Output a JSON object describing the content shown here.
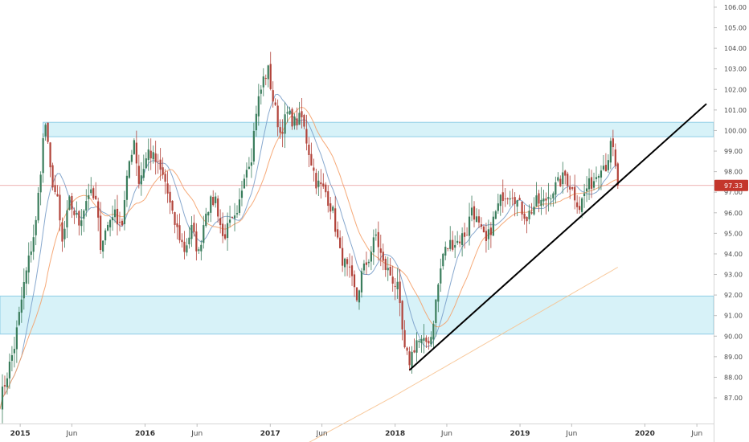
{
  "chart_data": {
    "type": "candlestick",
    "x_range": [
      "2014-11-03",
      "2020-07-20"
    ],
    "y_range": [
      85.75,
      106.35
    ],
    "y_ticks": [
      "87.00",
      "88.00",
      "89.00",
      "90.00",
      "91.00",
      "92.00",
      "93.00",
      "94.00",
      "95.00",
      "96.00",
      "97.00",
      "98.00",
      "99.00",
      "100.00",
      "101.00",
      "102.00",
      "103.00",
      "104.00",
      "105.00",
      "106.00"
    ],
    "x_ticks": [
      {
        "date": "2015-01-01",
        "label": "2015",
        "year": true
      },
      {
        "date": "2015-06-01",
        "label": "Jun",
        "year": false
      },
      {
        "date": "2016-01-01",
        "label": "2016",
        "year": true
      },
      {
        "date": "2016-06-01",
        "label": "Jun",
        "year": false
      },
      {
        "date": "2017-01-01",
        "label": "2017",
        "year": true
      },
      {
        "date": "2017-06-01",
        "label": "Jun",
        "year": false
      },
      {
        "date": "2018-01-01",
        "label": "2018",
        "year": true
      },
      {
        "date": "2018-06-01",
        "label": "Jun",
        "year": false
      },
      {
        "date": "2019-01-01",
        "label": "2019",
        "year": true
      },
      {
        "date": "2019-06-01",
        "label": "Jun",
        "year": false
      },
      {
        "date": "2020-01-01",
        "label": "2020",
        "year": true
      },
      {
        "date": "2020-06-01",
        "label": "Jun",
        "year": false
      }
    ],
    "last_price": {
      "label": "97.33",
      "value": 97.33
    },
    "zones": [
      {
        "name": "upper-resistance-zone",
        "y_top": 100.4,
        "y_bottom": 99.7,
        "x_start": "2015-03-09"
      },
      {
        "name": "lower-support-zone",
        "y_top": 91.95,
        "y_bottom": 90.1,
        "x_start": "2014-11-03"
      }
    ],
    "trendline": {
      "start": {
        "date": "2018-02-12",
        "value": 88.35
      },
      "end": {
        "date": "2020-06-29",
        "value": 101.3
      }
    },
    "keypoints": [
      [
        "2014-11-03",
        86.8
      ],
      [
        "2014-12-15",
        89.5
      ],
      [
        "2015-01-12",
        92.5
      ],
      [
        "2015-02-16",
        95.5
      ],
      [
        "2015-03-09",
        99.5
      ],
      [
        "2015-03-16",
        100.3
      ],
      [
        "2015-03-30",
        98.0
      ],
      [
        "2015-04-20",
        96.5
      ],
      [
        "2015-05-04",
        94.5
      ],
      [
        "2015-05-25",
        96.5
      ],
      [
        "2015-06-22",
        95.5
      ],
      [
        "2015-07-20",
        97.0
      ],
      [
        "2015-08-10",
        96.5
      ],
      [
        "2015-08-24",
        94.5
      ],
      [
        "2015-09-28",
        96.0
      ],
      [
        "2015-10-26",
        95.5
      ],
      [
        "2015-11-16",
        98.5
      ],
      [
        "2015-11-30",
        99.6
      ],
      [
        "2015-12-14",
        97.5
      ],
      [
        "2016-01-11",
        99.0
      ],
      [
        "2016-02-01",
        98.5
      ],
      [
        "2016-02-29",
        97.5
      ],
      [
        "2016-03-21",
        95.8
      ],
      [
        "2016-04-25",
        94.2
      ],
      [
        "2016-05-16",
        95.2
      ],
      [
        "2016-06-06",
        94.0
      ],
      [
        "2016-06-27",
        96.2
      ],
      [
        "2016-07-25",
        96.7
      ],
      [
        "2016-08-15",
        94.8
      ],
      [
        "2016-09-05",
        95.4
      ],
      [
        "2016-09-26",
        95.7
      ],
      [
        "2016-10-17",
        98.0
      ],
      [
        "2016-11-07",
        98.8
      ],
      [
        "2016-11-21",
        101.0
      ],
      [
        "2016-12-12",
        102.5
      ],
      [
        "2016-12-26",
        102.9
      ],
      [
        "2017-01-09",
        101.5
      ],
      [
        "2017-01-30",
        99.9
      ],
      [
        "2017-02-20",
        100.8
      ],
      [
        "2017-03-13",
        100.4
      ],
      [
        "2017-04-03",
        100.6
      ],
      [
        "2017-04-24",
        99.0
      ],
      [
        "2017-05-15",
        97.5
      ],
      [
        "2017-06-12",
        97.0
      ],
      [
        "2017-07-03",
        96.0
      ],
      [
        "2017-07-24",
        94.0
      ],
      [
        "2017-08-21",
        93.0
      ],
      [
        "2017-09-11",
        91.8
      ],
      [
        "2017-09-25",
        93.0
      ],
      [
        "2017-10-16",
        93.8
      ],
      [
        "2017-11-06",
        94.9
      ],
      [
        "2017-11-27",
        93.5
      ],
      [
        "2017-12-18",
        93.0
      ],
      [
        "2018-01-08",
        92.3
      ],
      [
        "2018-01-29",
        89.2
      ],
      [
        "2018-02-12",
        88.8
      ],
      [
        "2018-03-05",
        89.8
      ],
      [
        "2018-03-26",
        89.6
      ],
      [
        "2018-04-16",
        90.0
      ],
      [
        "2018-05-07",
        92.5
      ],
      [
        "2018-05-21",
        94.0
      ],
      [
        "2018-06-11",
        94.5
      ],
      [
        "2018-07-02",
        94.6
      ],
      [
        "2018-07-30",
        95.1
      ],
      [
        "2018-08-13",
        96.3
      ],
      [
        "2018-09-03",
        95.3
      ],
      [
        "2018-09-24",
        94.5
      ],
      [
        "2018-10-22",
        96.0
      ],
      [
        "2018-11-12",
        96.9
      ],
      [
        "2018-12-10",
        97.0
      ],
      [
        "2018-12-31",
        96.3
      ],
      [
        "2019-01-21",
        95.8
      ],
      [
        "2019-02-18",
        96.5
      ],
      [
        "2019-03-11",
        96.5
      ],
      [
        "2019-04-01",
        97.0
      ],
      [
        "2019-04-22",
        97.4
      ],
      [
        "2019-05-13",
        97.8
      ],
      [
        "2019-06-03",
        97.1
      ],
      [
        "2019-06-24",
        96.3
      ],
      [
        "2019-07-15",
        97.2
      ],
      [
        "2019-08-05",
        97.6
      ],
      [
        "2019-08-26",
        98.4
      ],
      [
        "2019-09-09",
        98.3
      ],
      [
        "2019-09-23",
        99.2
      ],
      [
        "2019-09-30",
        99.0
      ],
      [
        "2019-10-07",
        98.1
      ],
      [
        "2019-10-14",
        97.33
      ]
    ],
    "ma": [
      {
        "name": "ma-fast",
        "color": "#7a9ec9",
        "window": 10
      },
      {
        "name": "ma-medium",
        "color": "#f5a16a",
        "window": 20
      },
      {
        "name": "ma-slow",
        "color": "#f7c391",
        "window": 200
      }
    ],
    "grid": false,
    "candle_up_color": "#3a7d5c",
    "candle_down_color": "#b2433a",
    "trendline_color": "#000000",
    "zone_color": "#cdeff6",
    "zone_border_color": "#8fcde6",
    "price_line_color": "#e69a9a",
    "price_tag_color": "#c4362c"
  }
}
